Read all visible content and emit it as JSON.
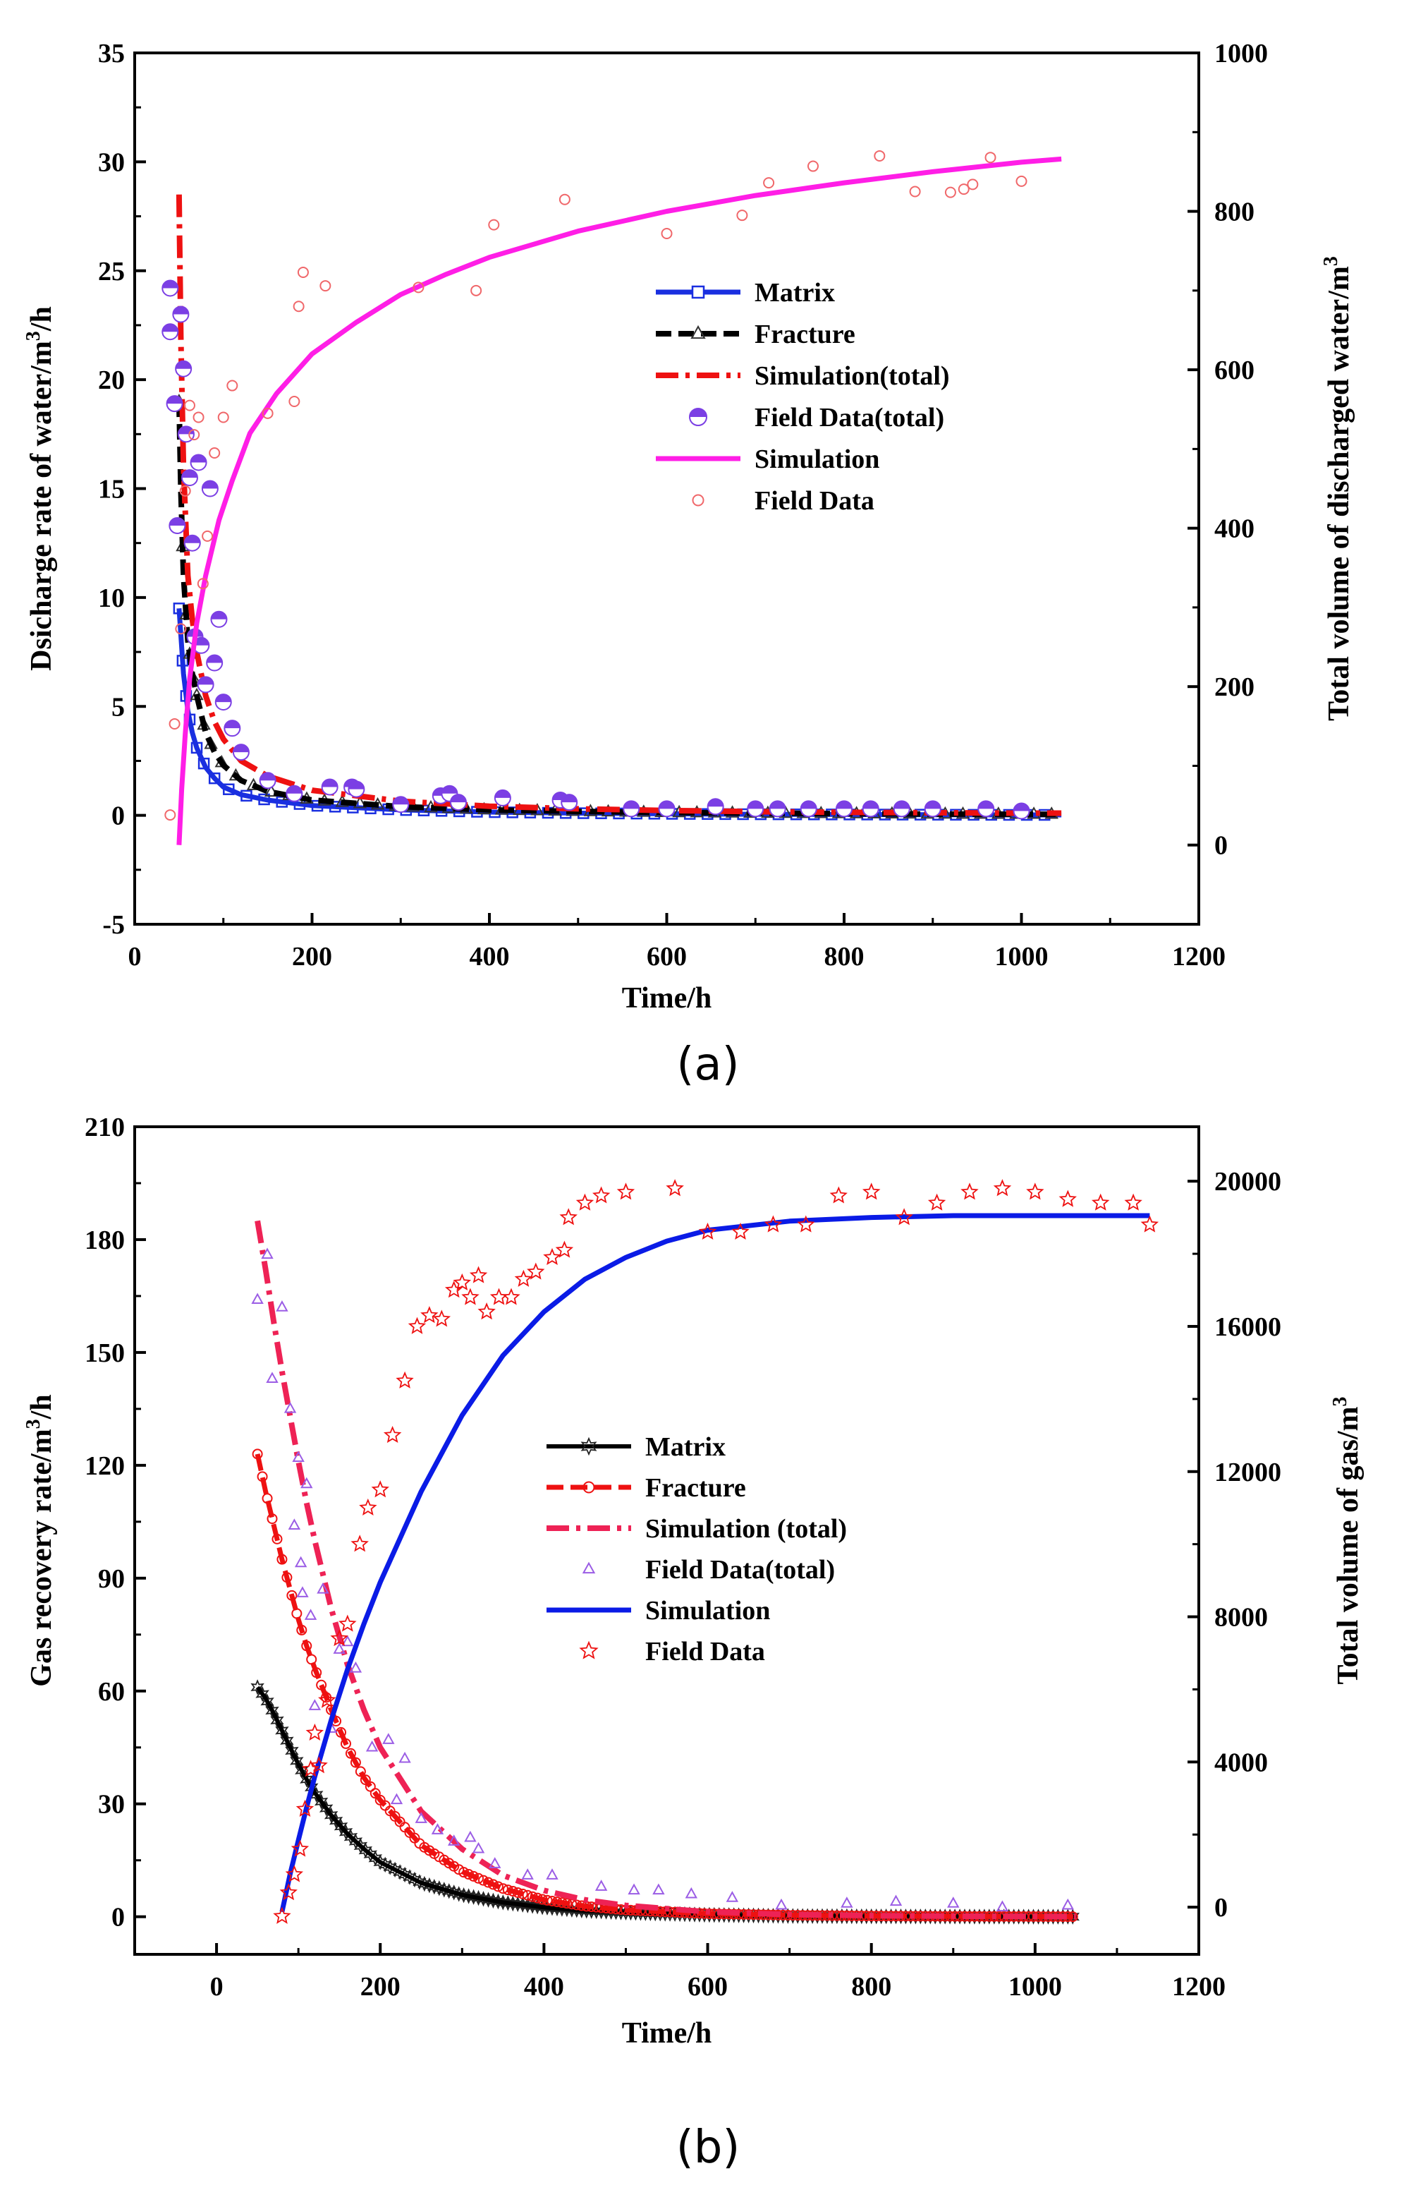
{
  "colors": {
    "blue": "#1a2fe0",
    "black": "#000000",
    "red": "#ee1111",
    "purple": "#7b3fe4",
    "magenta": "#ff1ee6",
    "pink_red": "#ee2255",
    "salmon": "#f0676a",
    "violet": "#9b5de5",
    "solid_blue": "#0a1be6"
  },
  "chart_data": [
    {
      "id": "a",
      "type": "line",
      "panel_label": "(a)",
      "xlabel": "Time/h",
      "ylabel_left": {
        "text": "Dsicharge rate of water/m",
        "sup": "3",
        "suffix": "/h"
      },
      "ylabel_right": {
        "text": "Total volume of discharged water/m",
        "sup": "3",
        "suffix": ""
      },
      "xlim": [
        0,
        1200
      ],
      "xticks": [
        "0",
        "200",
        "400",
        "600",
        "800",
        "1000",
        "1200"
      ],
      "xtick_values": [
        0,
        200,
        400,
        600,
        800,
        1000,
        1200
      ],
      "ylim_left": [
        -5,
        35
      ],
      "yticks_left": [
        "-5",
        "0",
        "5",
        "10",
        "15",
        "20",
        "25",
        "30",
        "35"
      ],
      "ytick_left_values": [
        -5,
        0,
        5,
        10,
        15,
        20,
        25,
        30,
        35
      ],
      "ylim_right": [
        -100,
        1000
      ],
      "yticks_right": [
        "0",
        "200",
        "400",
        "600",
        "800",
        "1000"
      ],
      "ytick_right_values": [
        0,
        200,
        400,
        600,
        800,
        1000
      ],
      "legend": [
        "Matrix",
        "Fracture",
        "Simulation(total)",
        "Field Data(total)",
        "Simulation",
        "Field Data"
      ],
      "series": [
        {
          "name": "Matrix",
          "axis": "left",
          "x": [
            50,
            55,
            60,
            65,
            70,
            80,
            90,
            100,
            120,
            150,
            200,
            300,
            400,
            500,
            600,
            700,
            800,
            900,
            1000,
            1045
          ],
          "y": [
            9.5,
            6.5,
            4.8,
            3.8,
            3.1,
            2.2,
            1.7,
            1.3,
            0.95,
            0.7,
            0.45,
            0.25,
            0.15,
            0.1,
            0.07,
            0.05,
            0.04,
            0.03,
            0.02,
            0.02
          ]
        },
        {
          "name": "Fracture",
          "axis": "left",
          "x": [
            50,
            52,
            55,
            60,
            65,
            70,
            80,
            90,
            100,
            120,
            150,
            200,
            300,
            400,
            500,
            600,
            700,
            800,
            900,
            1000,
            1045
          ],
          "y": [
            19,
            15,
            11,
            8,
            6.5,
            5.5,
            3.8,
            2.9,
            2.3,
            1.6,
            1.1,
            0.7,
            0.4,
            0.25,
            0.18,
            0.13,
            0.1,
            0.08,
            0.06,
            0.05,
            0.05
          ]
        },
        {
          "name": "Simulation(total)",
          "axis": "left",
          "x": [
            50,
            52,
            55,
            60,
            65,
            70,
            80,
            90,
            100,
            120,
            150,
            200,
            300,
            400,
            500,
            600,
            700,
            800,
            900,
            1000,
            1045
          ],
          "y": [
            28.5,
            22,
            16,
            11,
            9,
            7.5,
            5.5,
            4.3,
            3.5,
            2.5,
            1.8,
            1.15,
            0.65,
            0.42,
            0.3,
            0.22,
            0.17,
            0.14,
            0.12,
            0.1,
            0.1
          ]
        },
        {
          "name": "Field Data(total)",
          "axis": "left",
          "x": [
            40,
            40,
            45,
            48,
            52,
            55,
            58,
            62,
            65,
            68,
            72,
            75,
            80,
            85,
            90,
            95,
            100,
            110,
            120,
            150,
            180,
            220,
            245,
            250,
            300,
            345,
            355,
            365,
            415,
            480,
            490,
            560,
            600,
            655,
            700,
            725,
            760,
            800,
            830,
            865,
            900,
            960,
            1000
          ],
          "y": [
            24.2,
            22.2,
            18.9,
            13.3,
            23,
            20.5,
            17.5,
            15.5,
            12.5,
            8.2,
            16.2,
            7.8,
            6,
            15,
            7,
            9,
            5.2,
            4,
            2.9,
            1.6,
            1,
            1.3,
            1.3,
            1.2,
            0.5,
            0.9,
            1,
            0.6,
            0.8,
            0.7,
            0.6,
            0.3,
            0.3,
            0.4,
            0.3,
            0.3,
            0.3,
            0.3,
            0.3,
            0.3,
            0.3,
            0.3,
            0.2
          ]
        },
        {
          "name": "Simulation",
          "axis": "right",
          "x": [
            50,
            53,
            57,
            62,
            70,
            80,
            95,
            110,
            130,
            160,
            200,
            250,
            300,
            350,
            400,
            500,
            600,
            700,
            800,
            900,
            1000,
            1045
          ],
          "y": [
            0,
            70,
            140,
            210,
            280,
            340,
            410,
            460,
            520,
            570,
            620,
            660,
            695,
            720,
            742,
            775,
            800,
            820,
            836,
            850,
            862,
            866
          ]
        },
        {
          "name": "Field Data",
          "axis": "right",
          "x": [
            40,
            45,
            52,
            57,
            62,
            67,
            72,
            77,
            82,
            90,
            100,
            110,
            150,
            180,
            185,
            190,
            215,
            320,
            385,
            405,
            485,
            600,
            685,
            715,
            765,
            840,
            880,
            920,
            935,
            945,
            965,
            1000
          ],
          "y": [
            38,
            153,
            273,
            447,
            555,
            518,
            540,
            330,
            390,
            495,
            540,
            580,
            545,
            560,
            680,
            723,
            706,
            704,
            700,
            783,
            815,
            772,
            795,
            836,
            857,
            870,
            825,
            824,
            828,
            834,
            868,
            838
          ]
        }
      ]
    },
    {
      "id": "b",
      "type": "line",
      "panel_label": "(b)",
      "xlabel": "Time/h",
      "ylabel_left": {
        "text": "Gas recovery rate/m",
        "sup": "3",
        "suffix": "/h"
      },
      "ylabel_right": {
        "text": "Total volume of gas/m",
        "sup": "3",
        "suffix": ""
      },
      "xlim": [
        -100,
        1200
      ],
      "xticks": [
        "0",
        "200",
        "400",
        "600",
        "800",
        "1000",
        "1200"
      ],
      "xtick_values": [
        0,
        200,
        400,
        600,
        800,
        1000,
        1200
      ],
      "ylim_left": [
        -10,
        210
      ],
      "yticks_left": [
        "0",
        "30",
        "60",
        "90",
        "120",
        "150",
        "180",
        "210"
      ],
      "ytick_left_values": [
        0,
        30,
        60,
        90,
        120,
        150,
        180,
        210
      ],
      "ylim_right": [
        -1300,
        21500
      ],
      "yticks_right": [
        "0",
        "4000",
        "8000",
        "12000",
        "16000",
        "20000"
      ],
      "ytick_right_values": [
        0,
        4000,
        8000,
        12000,
        16000,
        20000
      ],
      "legend": [
        "Matrix",
        "Fracture",
        "Simulation (total)",
        "Field Data(total)",
        "Simulation",
        "Field Data"
      ],
      "series": [
        {
          "name": "Matrix",
          "axis": "left",
          "x": [
            50,
            60,
            70,
            80,
            90,
            100,
            110,
            120,
            140,
            160,
            180,
            200,
            250,
            300,
            350,
            400,
            450,
            500,
            600,
            700,
            800,
            900,
            1000,
            1050
          ],
          "y": [
            61,
            58,
            54,
            49.5,
            45,
            40.5,
            36.5,
            33,
            27,
            22,
            18,
            14.5,
            9,
            5.8,
            3.8,
            2.5,
            1.6,
            1.1,
            0.5,
            0.2,
            0.1,
            0.05,
            0.02,
            0.01
          ]
        },
        {
          "name": "Fracture",
          "axis": "left",
          "x": [
            50,
            60,
            70,
            80,
            90,
            100,
            110,
            120,
            140,
            160,
            180,
            200,
            250,
            300,
            350,
            400,
            450,
            500,
            600,
            700,
            800,
            900,
            1000,
            1050
          ],
          "y": [
            123,
            113,
            104,
            95,
            87,
            79,
            72,
            66,
            55,
            45,
            37,
            31,
            19,
            12,
            7.5,
            4.5,
            2.8,
            1.8,
            0.8,
            0.4,
            0.2,
            0.1,
            0.05,
            0.02
          ]
        },
        {
          "name": "Simulation (total)",
          "axis": "left",
          "x": [
            50,
            60,
            70,
            80,
            90,
            100,
            110,
            120,
            140,
            160,
            180,
            200,
            250,
            300,
            350,
            400,
            450,
            500,
            600,
            700,
            800,
            900,
            1000,
            1050
          ],
          "y": [
            185,
            172,
            158,
            145,
            133,
            121,
            110,
            100,
            82,
            67,
            55,
            45,
            28,
            18,
            11,
            7,
            4.5,
            3,
            1.3,
            0.6,
            0.3,
            0.15,
            0.07,
            0.03
          ]
        },
        {
          "name": "Field Data(total)",
          "axis": "left",
          "x": [
            50,
            62,
            68,
            80,
            90,
            95,
            100,
            103,
            105,
            110,
            115,
            120,
            130,
            140,
            150,
            160,
            170,
            190,
            210,
            220,
            230,
            250,
            270,
            290,
            310,
            320,
            340,
            380,
            410,
            470,
            510,
            540,
            580,
            630,
            690,
            770,
            830,
            900,
            960,
            1040
          ],
          "y": [
            164,
            176,
            143,
            162,
            135,
            104,
            122,
            94,
            86,
            115,
            80,
            56,
            87,
            50,
            71,
            73,
            66,
            45,
            47,
            31,
            42,
            26,
            23,
            20,
            21,
            18,
            14,
            11,
            11,
            8,
            7,
            7,
            6,
            5,
            3,
            3.5,
            4,
            3.5,
            2.5,
            3
          ]
        },
        {
          "name": "Simulation",
          "axis": "right",
          "x": [
            80,
            90,
            100,
            110,
            120,
            140,
            160,
            180,
            200,
            250,
            300,
            350,
            400,
            450,
            500,
            550,
            600,
            700,
            800,
            900,
            1000,
            1140
          ],
          "y": [
            -130,
            920,
            1850,
            2750,
            3600,
            5150,
            6550,
            7800,
            8950,
            11450,
            13550,
            15200,
            16400,
            17300,
            17900,
            18350,
            18650,
            18900,
            19000,
            19050,
            19050,
            19050
          ]
        },
        {
          "name": "Field Data",
          "axis": "right",
          "x": [
            80,
            88,
            95,
            102,
            108,
            115,
            120,
            125,
            135,
            150,
            160,
            175,
            185,
            200,
            215,
            230,
            245,
            260,
            275,
            290,
            300,
            310,
            320,
            330,
            345,
            360,
            375,
            390,
            410,
            425,
            430,
            450,
            470,
            500,
            560,
            600,
            640,
            680,
            720,
            760,
            800,
            840,
            880,
            920,
            960,
            1000,
            1040,
            1080,
            1120,
            1140
          ],
          "y": [
            -250,
            400,
            900,
            1600,
            2700,
            3800,
            4800,
            3900,
            5700,
            7400,
            7800,
            10000,
            11000,
            11500,
            13000,
            14500,
            16000,
            16300,
            16200,
            17000,
            17200,
            16800,
            17400,
            16400,
            16800,
            16800,
            17300,
            17500,
            17900,
            18100,
            19000,
            19400,
            19600,
            19700,
            19800,
            18600,
            18600,
            18800,
            18800,
            19600,
            19700,
            19000,
            19400,
            19700,
            19800,
            19700,
            19500,
            19400,
            19400,
            18800
          ]
        }
      ]
    }
  ]
}
